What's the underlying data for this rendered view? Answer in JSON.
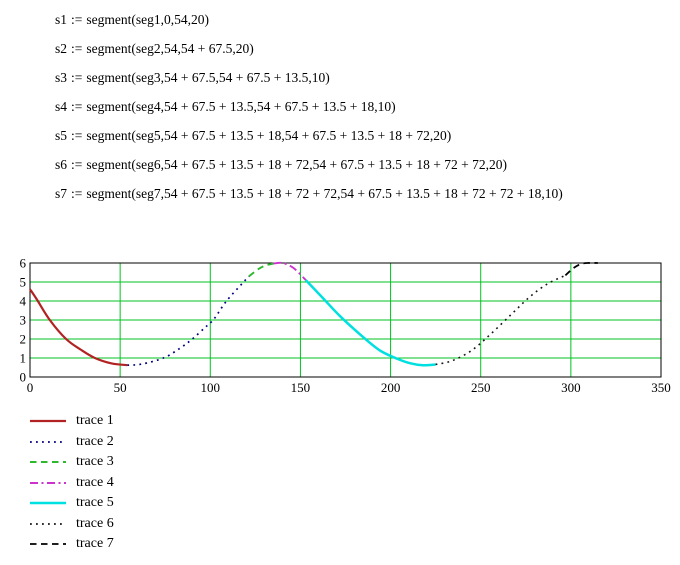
{
  "equations": {
    "assign_op": ":=",
    "items": [
      {
        "name": "s1",
        "definition": "segment(seg1,0,54,20)"
      },
      {
        "name": "s2",
        "definition": "segment(seg2,54,54 + 67.5,20)"
      },
      {
        "name": "s3",
        "definition": "segment(seg3,54 + 67.5,54 + 67.5 + 13.5,10)"
      },
      {
        "name": "s4",
        "definition": "segment(seg4,54 + 67.5 + 13.5,54 + 67.5 + 13.5 + 18,10)"
      },
      {
        "name": "s5",
        "definition": "segment(seg5,54 + 67.5 + 13.5 + 18,54 + 67.5 + 13.5 + 18 + 72,20)"
      },
      {
        "name": "s6",
        "definition": "segment(seg6,54 + 67.5 + 13.5 + 18 + 72,54 + 67.5 + 13.5 + 18 + 72 + 72,20)"
      },
      {
        "name": "s7",
        "definition": "segment(seg7,54 + 67.5 + 13.5 + 18 + 72 + 72,54 + 67.5 + 13.5 + 18 + 72 + 72 + 18,10)"
      }
    ]
  },
  "chart_data": {
    "type": "line",
    "title": "",
    "xlabel": "",
    "ylabel": "",
    "xlim": [
      0,
      350
    ],
    "ylim": [
      0,
      6
    ],
    "xticks": [
      0,
      50,
      100,
      150,
      200,
      250,
      300,
      350
    ],
    "yticks": [
      0,
      1,
      2,
      3,
      4,
      5,
      6
    ],
    "grid": true,
    "grid_color": "#00c321",
    "frame_color": "#000000",
    "legend_position": "below-left",
    "series": [
      {
        "name": "trace 1",
        "color": "#b22222",
        "style": "solid",
        "width": 2.2,
        "points": [
          [
            0,
            4.62
          ],
          [
            4,
            4.05
          ],
          [
            11,
            3.0
          ],
          [
            20,
            2.0
          ],
          [
            28,
            1.45
          ],
          [
            36,
            1.0
          ],
          [
            45,
            0.72
          ],
          [
            54,
            0.62
          ]
        ]
      },
      {
        "name": "trace 2",
        "color": "#000080",
        "style": "dotted",
        "width": 1.7,
        "points": [
          [
            54,
            0.62
          ],
          [
            62,
            0.68
          ],
          [
            74,
            1.0
          ],
          [
            83,
            1.5
          ],
          [
            90,
            2.0
          ],
          [
            97,
            2.6
          ],
          [
            102,
            3.05
          ],
          [
            109,
            4.0
          ],
          [
            118,
            4.95
          ],
          [
            121.5,
            5.3
          ]
        ]
      },
      {
        "name": "trace 3",
        "color": "#2eb82e",
        "style": "dashed",
        "width": 1.9,
        "points": [
          [
            121.5,
            5.3
          ],
          [
            127,
            5.7
          ],
          [
            131,
            5.88
          ],
          [
            135,
            5.97
          ]
        ]
      },
      {
        "name": "trace 4",
        "color": "#cc33cc",
        "style": "dashdot",
        "width": 1.9,
        "points": [
          [
            135,
            5.97
          ],
          [
            140,
            6.0
          ],
          [
            146,
            5.75
          ],
          [
            153,
            5.1
          ]
        ]
      },
      {
        "name": "trace 5",
        "color": "#00e0e0",
        "style": "solid",
        "width": 2.5,
        "points": [
          [
            153,
            5.1
          ],
          [
            162,
            4.2
          ],
          [
            172,
            3.2
          ],
          [
            183,
            2.25
          ],
          [
            194,
            1.4
          ],
          [
            204,
            0.95
          ],
          [
            211,
            0.72
          ],
          [
            218,
            0.62
          ],
          [
            225,
            0.66
          ]
        ]
      },
      {
        "name": "trace 6",
        "color": "#161616",
        "style": "dotted",
        "width": 1.6,
        "points": [
          [
            225,
            0.66
          ],
          [
            234,
            0.85
          ],
          [
            245,
            1.4
          ],
          [
            256,
            2.3
          ],
          [
            267,
            3.3
          ],
          [
            277,
            4.2
          ],
          [
            287,
            4.9
          ],
          [
            297,
            5.35
          ]
        ]
      },
      {
        "name": "trace 7",
        "color": "#000000",
        "style": "dashed",
        "width": 1.8,
        "points": [
          [
            297,
            5.35
          ],
          [
            301,
            5.7
          ],
          [
            305,
            5.93
          ],
          [
            309,
            6.0
          ],
          [
            315,
            6.0
          ]
        ]
      }
    ]
  },
  "legend": {
    "items": [
      {
        "label": "trace 1"
      },
      {
        "label": "trace 2"
      },
      {
        "label": "trace 3"
      },
      {
        "label": "trace 4"
      },
      {
        "label": "trace 5"
      },
      {
        "label": "trace 6"
      },
      {
        "label": "trace 7"
      }
    ]
  }
}
